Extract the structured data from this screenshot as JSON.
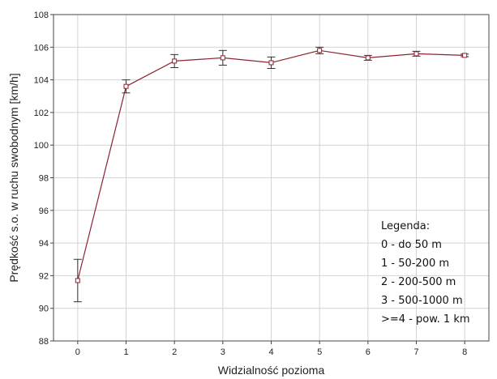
{
  "chart_data": {
    "type": "line",
    "xlabel": "Widzialność pozioma",
    "ylabel": "Prędkość s.o. w ruchu swobodnym [km/h]",
    "x": [
      0,
      1,
      2,
      3,
      4,
      5,
      6,
      7,
      8
    ],
    "xticks": [
      "0",
      "1",
      "2",
      "3",
      "4",
      "5",
      "6",
      "7",
      "8"
    ],
    "xlim": [
      -0.5,
      8.5
    ],
    "yticks": [
      "88",
      "90",
      "92",
      "94",
      "96",
      "98",
      "100",
      "102",
      "104",
      "106",
      "108"
    ],
    "ylim": [
      88,
      108
    ],
    "grid": true,
    "series": [
      {
        "values": [
          91.7,
          103.6,
          105.15,
          105.35,
          105.05,
          105.8,
          105.35,
          105.6,
          105.5
        ],
        "error_low": [
          90.4,
          103.2,
          104.75,
          104.9,
          104.7,
          105.6,
          105.2,
          105.45,
          105.42
        ],
        "error_high": [
          93.0,
          104.0,
          105.55,
          105.8,
          105.4,
          106.0,
          105.5,
          105.75,
          105.58
        ],
        "color": "#8b2332",
        "marker": "square"
      }
    ],
    "legend": {
      "placement": "bottom-right",
      "lines": [
        "Legenda:",
        "0 - do 50 m",
        "1 - 50-200 m",
        "2 - 200-500 m",
        "3 - 500-1000 m",
        ">=4 - pow. 1 km"
      ]
    }
  }
}
